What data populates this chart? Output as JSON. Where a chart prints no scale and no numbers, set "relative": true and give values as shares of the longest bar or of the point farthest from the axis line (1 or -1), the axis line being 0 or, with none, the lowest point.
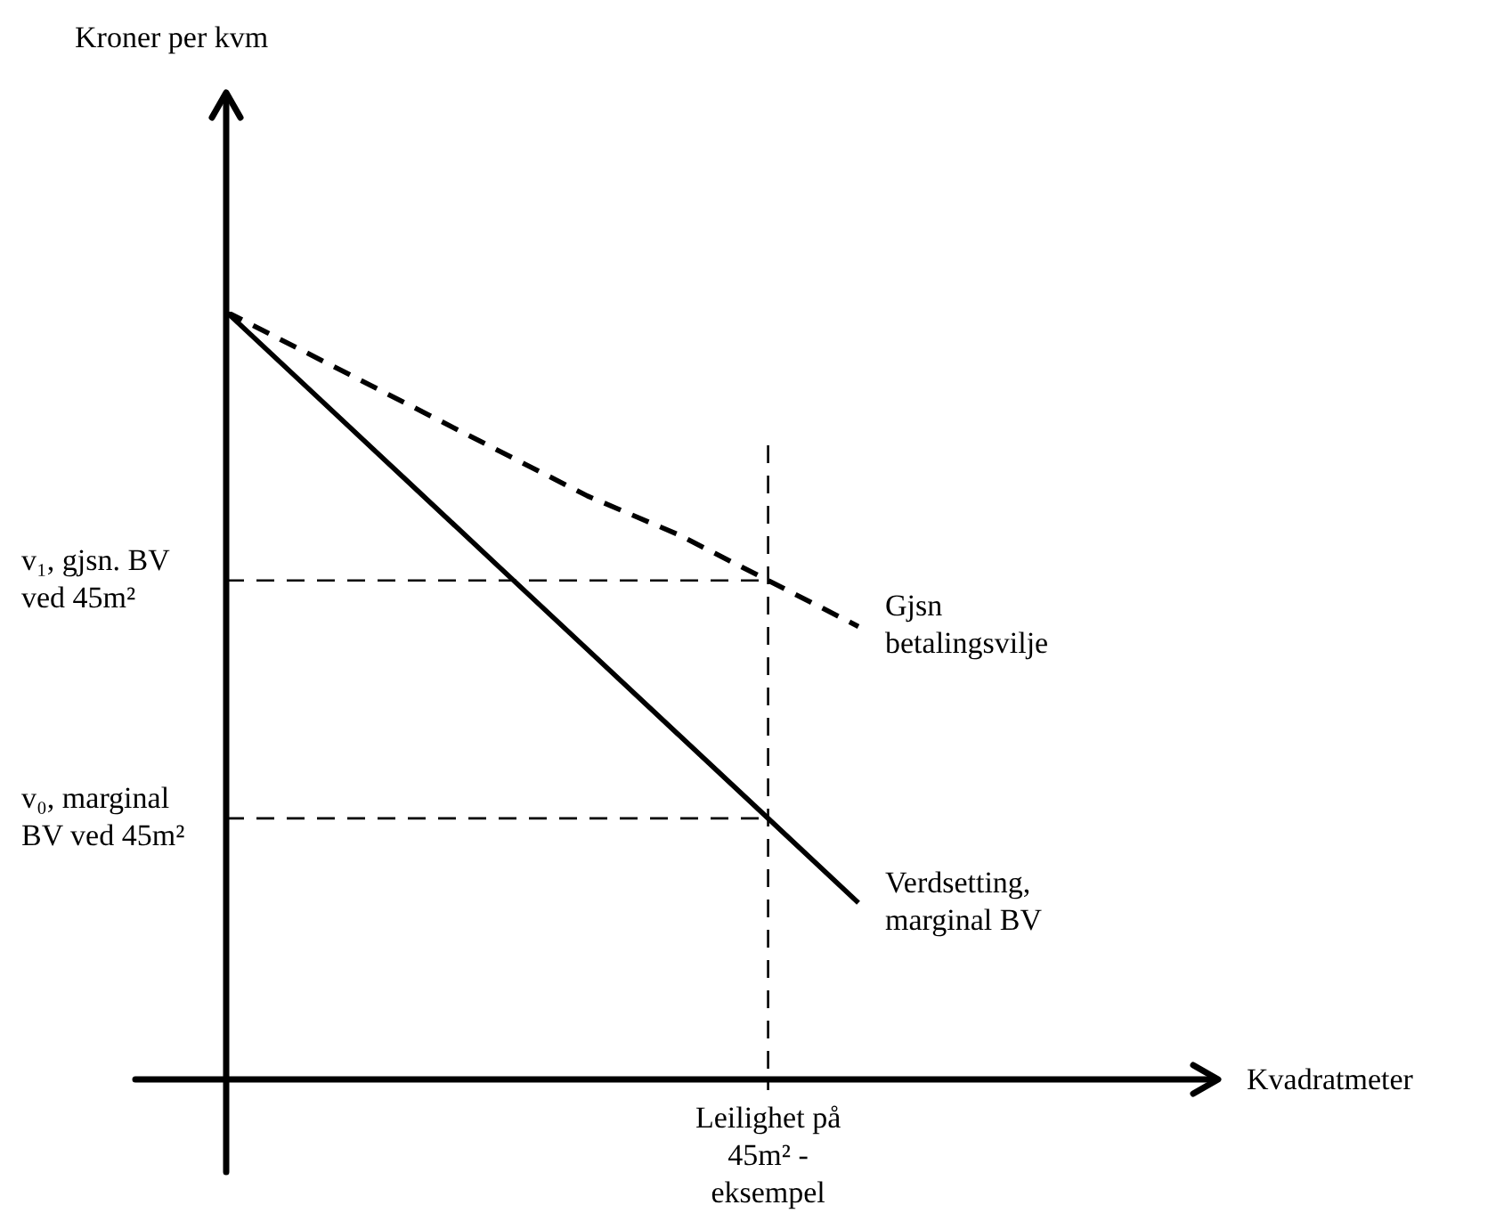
{
  "chart_data": {
    "type": "line",
    "relative": true,
    "annotations": [
      "Kroner per kvm",
      "Kvadratmeter",
      "Leilighet på 45m² - eksempel"
    ],
    "categories": [
      null,
      null,
      null,
      null,
      null,
      null,
      null,
      null
    ],
    "series": [
      {
        "name": "Gjsn betalingsvilje",
        "color": "#000000",
        "line_style": "dashed",
        "values": [
          1,
          0.94,
          0.88,
          0.82,
          0.76,
          0.71,
          0.65,
          0.59
        ]
      },
      {
        "name": "Verdsetting, marginal BV",
        "color": "#000000",
        "line_style": "solid",
        "values": [
          1,
          0.89,
          0.78,
          0.67,
          0.56,
          0.45,
          0.34,
          0.23
        ]
      }
    ],
    "ref_lines": [
      {
        "axis": "y",
        "value": 0.65,
        "label": "v₁, gjsn. BV ved 45m²",
        "line_style": "dashed",
        "color": "#000000"
      },
      {
        "axis": "y",
        "value": 0.34,
        "label": "v₀, marginal BV ved 45m²",
        "line_style": "dashed",
        "color": "#000000"
      }
    ],
    "legend": false,
    "grid": false,
    "marker": "none"
  }
}
